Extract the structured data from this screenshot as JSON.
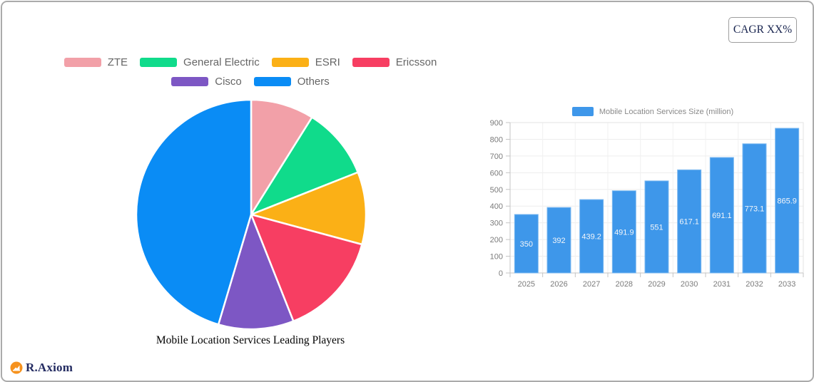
{
  "header": {
    "cagr_label": "CAGR XX%"
  },
  "footer": {
    "brand": "R.Axiom",
    "logo_icon": "area-chart-circle-icon",
    "logo_orange": "#F6921E",
    "logo_navy": "#232B61"
  },
  "chart_data": [
    {
      "type": "pie",
      "title": "Mobile Location Services Leading Players",
      "labels": [
        "ZTE",
        "General Electric",
        "ESRI",
        "Ericsson",
        "Cisco",
        "Others"
      ],
      "values": [
        8.9,
        10.1,
        10.2,
        14.8,
        10.6,
        45.4
      ],
      "colors": [
        "#F2A0A8",
        "#10DB8B",
        "#FBB016",
        "#F73E62",
        "#7D57C4",
        "#0A8CF5"
      ],
      "unit": "percent_estimated",
      "legend_position": "top",
      "legend_rows": [
        4,
        2
      ],
      "start_angle_deg": 0,
      "direction": "clockwise"
    },
    {
      "type": "bar",
      "legend": "Mobile Location Services Size (million)",
      "categories": [
        "2025",
        "2026",
        "2027",
        "2028",
        "2029",
        "2030",
        "2031",
        "2032",
        "2033"
      ],
      "values": [
        350,
        392,
        439.2,
        491.9,
        551,
        617.1,
        691.1,
        773.1,
        865.9
      ],
      "bar_color": "#3E97EA",
      "bar_border_color": "#7CB9F0",
      "value_label_color": "#F2F5F9",
      "axis_label_color": "#7B7B7B",
      "ylim": [
        0,
        900
      ],
      "y_ticks": [
        0,
        100,
        200,
        300,
        400,
        500,
        600,
        700,
        800,
        900
      ],
      "grid": true,
      "legend_position": "top"
    }
  ]
}
